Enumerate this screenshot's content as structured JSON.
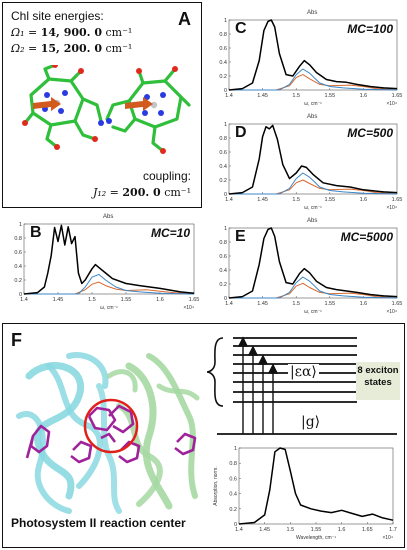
{
  "panelA": {
    "letter": "A",
    "heading": "Chl site energies:",
    "omega1_label": "Ω₁ = ",
    "omega1_value": "14, 900. 0",
    "omega2_label": "Ω₂ = ",
    "omega2_value": "15, 200. 0",
    "unit": "cm⁻¹",
    "coupling_heading": "coupling:",
    "j_label": "J₁₂ = ",
    "j_value": "200. 0",
    "j_unit": "cm⁻¹"
  },
  "panelF": {
    "letter": "F",
    "caption": "Photosystem II reaction center",
    "state_label": "|εα⟩",
    "ground_label": "|g⟩",
    "exciton_note": "8 exciton states"
  },
  "colors": {
    "total": "#000000",
    "component1": "#d9692f",
    "component2": "#3a86c8",
    "protein_cyan": "#8ad8e0",
    "protein_green": "#a6d8a2",
    "chl_magenta": "#a0229a",
    "ring_red": "#e0201a"
  },
  "chart_data": [
    {
      "panel": "C",
      "type": "line",
      "title": "Abs",
      "annotation": "MC=100",
      "xlabel": "ω, cm⁻¹",
      "x_exponent": "×10⁴",
      "xlim": [
        1.4,
        1.65
      ],
      "ylim": [
        0,
        1
      ],
      "xticks": [
        "1.4",
        "1.45",
        "1.5",
        "1.55",
        "1.6",
        "1.65"
      ],
      "yticks": [
        "0",
        "0.2",
        "0.4",
        "0.6",
        "0.8",
        "1"
      ],
      "series": [
        {
          "role": "total",
          "x": [
            1.4,
            1.42,
            1.435,
            1.445,
            1.452,
            1.458,
            1.463,
            1.468,
            1.475,
            1.485,
            1.495,
            1.505,
            1.512,
            1.52,
            1.53,
            1.545,
            1.56,
            1.575,
            1.59,
            1.61,
            1.63,
            1.65
          ],
          "y": [
            0.0,
            0.02,
            0.1,
            0.42,
            0.85,
            0.98,
            1.0,
            0.9,
            0.52,
            0.22,
            0.2,
            0.34,
            0.42,
            0.36,
            0.25,
            0.15,
            0.12,
            0.11,
            0.08,
            0.05,
            0.03,
            0.02
          ]
        },
        {
          "role": "component",
          "x": [
            1.4,
            1.47,
            1.49,
            1.5,
            1.51,
            1.52,
            1.535,
            1.55,
            1.58,
            1.6,
            1.62,
            1.65
          ],
          "y": [
            0.0,
            0.0,
            0.06,
            0.18,
            0.22,
            0.16,
            0.08,
            0.06,
            0.07,
            0.05,
            0.02,
            0.0
          ]
        },
        {
          "role": "component",
          "x": [
            1.4,
            1.475,
            1.49,
            1.5,
            1.51,
            1.52,
            1.535,
            1.55,
            1.57,
            1.6,
            1.65
          ],
          "y": [
            0.0,
            0.0,
            0.08,
            0.22,
            0.3,
            0.24,
            0.1,
            0.05,
            0.03,
            0.01,
            0.0
          ]
        }
      ]
    },
    {
      "panel": "D",
      "type": "line",
      "title": "Abs",
      "annotation": "MC=500",
      "xlabel": "ω, cm⁻¹",
      "x_exponent": "×10⁴",
      "xlim": [
        1.4,
        1.65
      ],
      "ylim": [
        0,
        1
      ],
      "xticks": [
        "1.4",
        "1.45",
        "1.5",
        "1.55",
        "1.6",
        "1.65"
      ],
      "yticks": [
        "0",
        "0.2",
        "0.4",
        "0.6",
        "0.8",
        "1"
      ],
      "series": [
        {
          "role": "total",
          "x": [
            1.4,
            1.42,
            1.435,
            1.445,
            1.45,
            1.455,
            1.46,
            1.465,
            1.472,
            1.48,
            1.49,
            1.5,
            1.508,
            1.515,
            1.525,
            1.54,
            1.56,
            1.58,
            1.6,
            1.63,
            1.65
          ],
          "y": [
            0.0,
            0.02,
            0.1,
            0.5,
            0.82,
            0.96,
            0.93,
            0.98,
            0.78,
            0.42,
            0.22,
            0.3,
            0.4,
            0.38,
            0.28,
            0.16,
            0.12,
            0.1,
            0.06,
            0.03,
            0.02
          ]
        },
        {
          "role": "component",
          "x": [
            1.4,
            1.47,
            1.49,
            1.5,
            1.51,
            1.52,
            1.535,
            1.55,
            1.58,
            1.6,
            1.62,
            1.65
          ],
          "y": [
            0.0,
            0.0,
            0.06,
            0.16,
            0.2,
            0.15,
            0.08,
            0.06,
            0.07,
            0.05,
            0.02,
            0.0
          ]
        },
        {
          "role": "component",
          "x": [
            1.4,
            1.475,
            1.49,
            1.5,
            1.51,
            1.52,
            1.535,
            1.55,
            1.57,
            1.6,
            1.65
          ],
          "y": [
            0.0,
            0.0,
            0.08,
            0.22,
            0.3,
            0.24,
            0.1,
            0.05,
            0.03,
            0.01,
            0.0
          ]
        }
      ]
    },
    {
      "panel": "B",
      "type": "line",
      "title": "Abs",
      "annotation": "MC=10",
      "xlabel": "ω, cm⁻¹",
      "x_exponent": "×10⁴",
      "xlim": [
        1.4,
        1.65
      ],
      "ylim": [
        0,
        1
      ],
      "xticks": [
        "1.4",
        "1.45",
        "1.5",
        "1.55",
        "1.6",
        "1.65"
      ],
      "yticks": [
        "0",
        "0.2",
        "0.4",
        "0.6",
        "0.8",
        "1"
      ],
      "series": [
        {
          "role": "total",
          "x": [
            1.4,
            1.42,
            1.43,
            1.435,
            1.44,
            1.445,
            1.45,
            1.455,
            1.46,
            1.465,
            1.47,
            1.475,
            1.48,
            1.485,
            1.49,
            1.5,
            1.505,
            1.51,
            1.52,
            1.53,
            1.55,
            1.57,
            1.6,
            1.63,
            1.65
          ],
          "y": [
            0.0,
            0.02,
            0.1,
            0.3,
            0.55,
            0.95,
            0.75,
            0.98,
            0.7,
            0.96,
            0.72,
            0.82,
            0.3,
            0.15,
            0.2,
            0.36,
            0.42,
            0.38,
            0.3,
            0.22,
            0.15,
            0.12,
            0.08,
            0.03,
            0.01
          ]
        },
        {
          "role": "component",
          "x": [
            1.4,
            1.475,
            1.49,
            1.5,
            1.51,
            1.52,
            1.535,
            1.55,
            1.58,
            1.6,
            1.62,
            1.65
          ],
          "y": [
            0.0,
            0.0,
            0.06,
            0.14,
            0.17,
            0.12,
            0.07,
            0.05,
            0.06,
            0.04,
            0.02,
            0.0
          ]
        },
        {
          "role": "component",
          "x": [
            1.4,
            1.48,
            1.49,
            1.5,
            1.51,
            1.52,
            1.535,
            1.55,
            1.57,
            1.6,
            1.65
          ],
          "y": [
            0.0,
            0.0,
            0.1,
            0.24,
            0.28,
            0.2,
            0.1,
            0.05,
            0.03,
            0.01,
            0.0
          ]
        }
      ]
    },
    {
      "panel": "E",
      "type": "line",
      "title": "Abs",
      "annotation": "MC=5000",
      "xlabel": "ω, cm⁻¹",
      "x_exponent": "×10⁴",
      "xlim": [
        1.4,
        1.65
      ],
      "ylim": [
        0,
        1
      ],
      "xticks": [
        "1.4",
        "1.45",
        "1.5",
        "1.55",
        "1.6",
        "1.65"
      ],
      "yticks": [
        "0",
        "0.2",
        "0.4",
        "0.6",
        "0.8",
        "1"
      ],
      "series": [
        {
          "role": "total",
          "x": [
            1.4,
            1.42,
            1.435,
            1.445,
            1.452,
            1.458,
            1.463,
            1.468,
            1.475,
            1.485,
            1.495,
            1.505,
            1.512,
            1.52,
            1.53,
            1.545,
            1.56,
            1.575,
            1.59,
            1.61,
            1.63,
            1.65
          ],
          "y": [
            0.0,
            0.02,
            0.1,
            0.48,
            0.85,
            0.98,
            1.0,
            0.88,
            0.52,
            0.22,
            0.2,
            0.35,
            0.42,
            0.36,
            0.24,
            0.15,
            0.12,
            0.1,
            0.08,
            0.05,
            0.03,
            0.02
          ]
        },
        {
          "role": "component",
          "x": [
            1.4,
            1.47,
            1.49,
            1.5,
            1.51,
            1.52,
            1.535,
            1.55,
            1.58,
            1.6,
            1.62,
            1.65
          ],
          "y": [
            0.0,
            0.0,
            0.06,
            0.17,
            0.21,
            0.15,
            0.08,
            0.06,
            0.07,
            0.05,
            0.02,
            0.0
          ]
        },
        {
          "role": "component",
          "x": [
            1.4,
            1.475,
            1.49,
            1.5,
            1.51,
            1.52,
            1.535,
            1.55,
            1.57,
            1.6,
            1.65
          ],
          "y": [
            0.0,
            0.0,
            0.08,
            0.22,
            0.3,
            0.24,
            0.1,
            0.05,
            0.03,
            0.01,
            0.0
          ]
        }
      ]
    },
    {
      "panel": "F-inset",
      "type": "line",
      "title": "",
      "annotation": "",
      "xlabel": "Wavelength, cm⁻¹",
      "ylabel": "Absorption, norm.",
      "x_exponent": "×10⁴",
      "xlim": [
        1.4,
        1.7
      ],
      "ylim": [
        0,
        1
      ],
      "xticks": [
        "1.4",
        "1.45",
        "1.5",
        "1.55",
        "1.6",
        "1.65",
        "1.7"
      ],
      "yticks": [
        "0",
        "0.2",
        "0.4",
        "0.6",
        "0.8",
        "1"
      ],
      "series": [
        {
          "role": "total",
          "x": [
            1.4,
            1.43,
            1.45,
            1.46,
            1.47,
            1.48,
            1.49,
            1.5,
            1.51,
            1.52,
            1.54,
            1.56,
            1.58,
            1.6,
            1.62,
            1.64,
            1.66,
            1.68,
            1.7
          ],
          "y": [
            0.0,
            0.02,
            0.12,
            0.45,
            0.95,
            1.0,
            0.98,
            0.7,
            0.4,
            0.25,
            0.2,
            0.17,
            0.15,
            0.18,
            0.14,
            0.1,
            0.13,
            0.08,
            0.05
          ]
        }
      ]
    }
  ]
}
